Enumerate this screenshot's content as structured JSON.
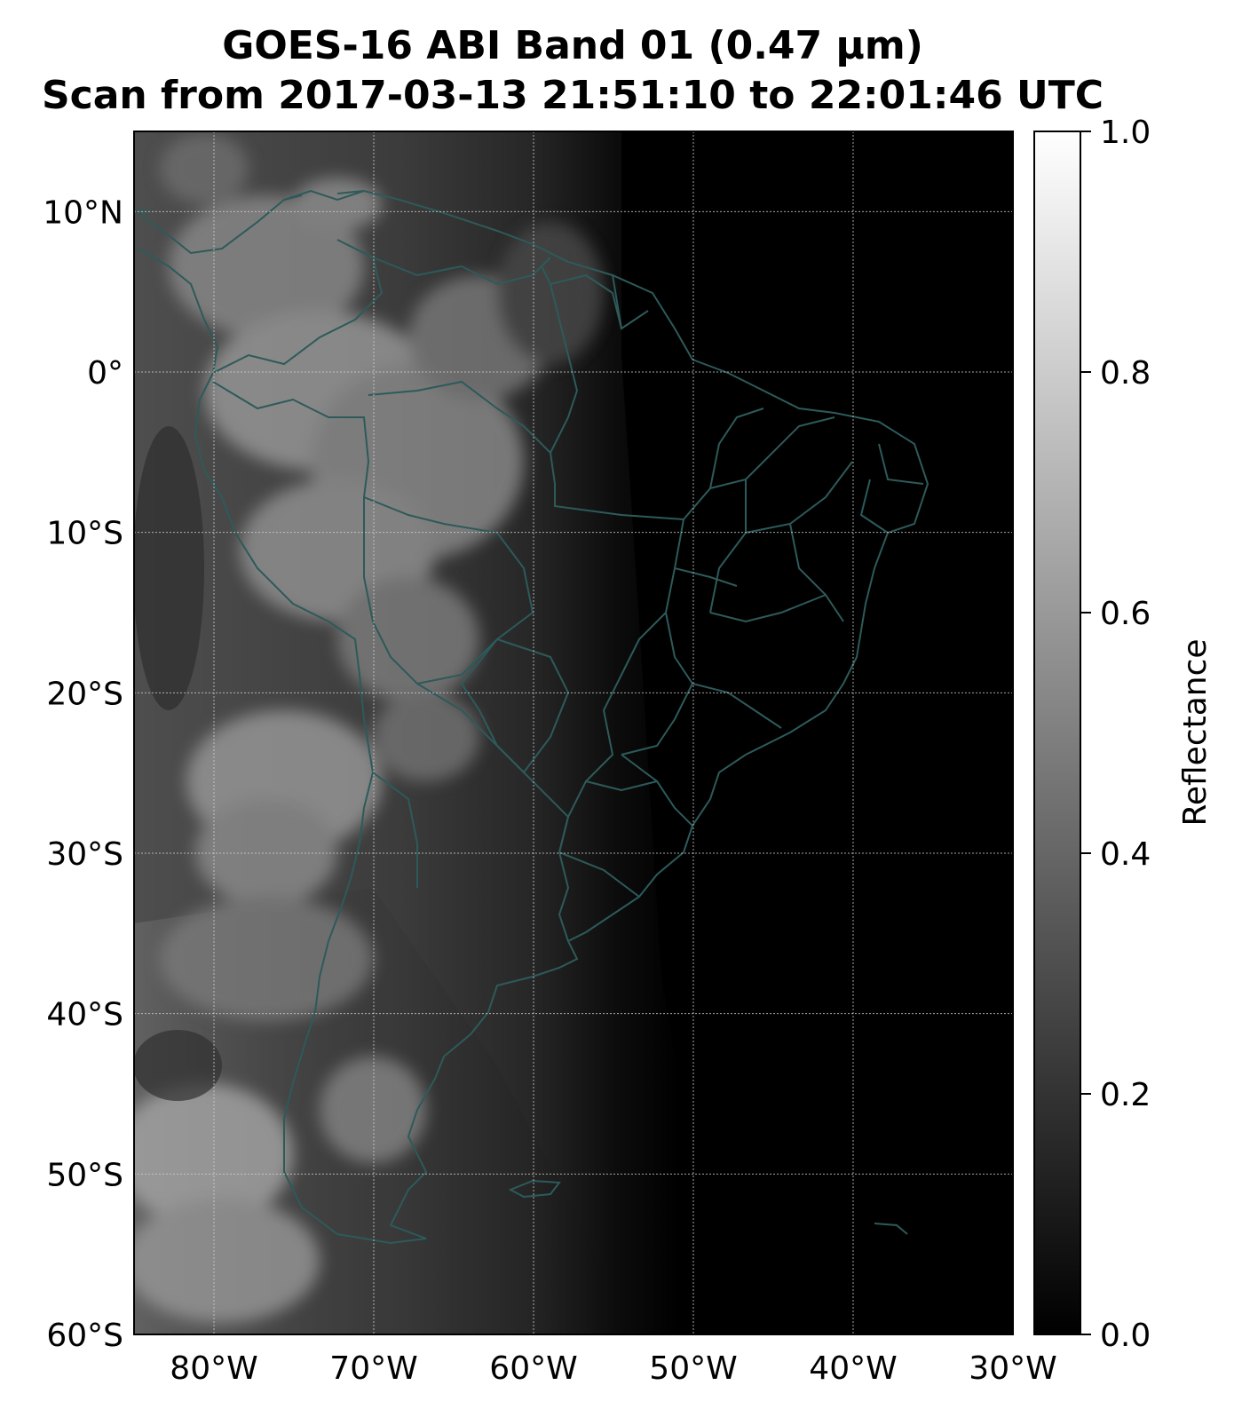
{
  "title": {
    "line1": "GOES-16 ABI Band 01 (0.47 µm)",
    "line2": "Scan from 2017-03-13 21:51:10 to 22:01:46 UTC"
  },
  "map": {
    "projection": "PlateCarree",
    "extent": {
      "lon_min": -85,
      "lon_max": -30,
      "lat_min": -60,
      "lat_max": 15
    },
    "lon_ticks": [
      {
        "value": -80,
        "label": "80°W"
      },
      {
        "value": -70,
        "label": "70°W"
      },
      {
        "value": -60,
        "label": "60°W"
      },
      {
        "value": -50,
        "label": "50°W"
      },
      {
        "value": -40,
        "label": "40°W"
      },
      {
        "value": -30,
        "label": "30°W"
      }
    ],
    "lat_ticks": [
      {
        "value": 10,
        "label": "10°N"
      },
      {
        "value": 0,
        "label": "0°"
      },
      {
        "value": -10,
        "label": "10°S"
      },
      {
        "value": -20,
        "label": "20°S"
      },
      {
        "value": -30,
        "label": "30°S"
      },
      {
        "value": -40,
        "label": "40°S"
      },
      {
        "value": -50,
        "label": "50°S"
      },
      {
        "value": -60,
        "label": "60°S"
      }
    ],
    "gridlines": true,
    "border_color": "#2e5a5a",
    "colormap": "Greys_r"
  },
  "colorbar": {
    "label": "Reflectance",
    "min": 0.0,
    "max": 1.0,
    "ticks": [
      {
        "value": 0.0,
        "label": "0.0"
      },
      {
        "value": 0.2,
        "label": "0.2"
      },
      {
        "value": 0.4,
        "label": "0.4"
      },
      {
        "value": 0.6,
        "label": "0.6"
      },
      {
        "value": 0.8,
        "label": "0.8"
      },
      {
        "value": 1.0,
        "label": "1.0"
      }
    ]
  }
}
